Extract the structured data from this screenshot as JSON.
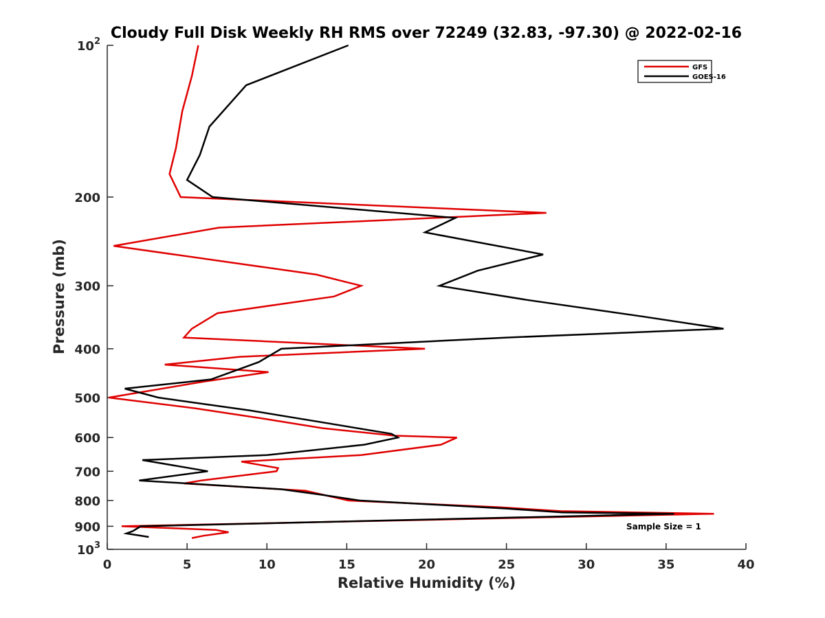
{
  "chart_data": {
    "type": "line",
    "title": "Cloudy Full Disk Weekly RH RMS over 72249 (32.83, -97.30) @ 2022-02-16",
    "xlabel": "Relative Humidity (%)",
    "ylabel": "Pressure (mb)",
    "xlim": [
      0,
      40
    ],
    "ylim": [
      100,
      1000
    ],
    "y_scale": "log",
    "y_reversed": true,
    "x_ticks": [
      0,
      5,
      10,
      15,
      20,
      25,
      30,
      35,
      40
    ],
    "x_tick_labels": [
      "0",
      "5",
      "10",
      "15",
      "20",
      "25",
      "30",
      "35",
      "40"
    ],
    "y_ticks": [
      100,
      200,
      300,
      400,
      500,
      600,
      700,
      800,
      900,
      1000
    ],
    "y_tick_labels": [
      {
        "base": "10",
        "exp": "2"
      },
      {
        "base": "200",
        "exp": ""
      },
      {
        "base": "300",
        "exp": ""
      },
      {
        "base": "400",
        "exp": ""
      },
      {
        "base": "500",
        "exp": ""
      },
      {
        "base": "600",
        "exp": ""
      },
      {
        "base": "700",
        "exp": ""
      },
      {
        "base": "800",
        "exp": ""
      },
      {
        "base": "900",
        "exp": ""
      },
      {
        "base": "10",
        "exp": "3"
      }
    ],
    "grid": false,
    "legend_position": "top-right",
    "annotation": "Sample Size = 1",
    "series": [
      {
        "name": "GFS",
        "color": "#e00000",
        "points": [
          [
            5.7,
            100
          ],
          [
            5.3,
            115
          ],
          [
            4.7,
            135
          ],
          [
            4.3,
            160
          ],
          [
            3.9,
            180
          ],
          [
            4.6,
            200
          ],
          [
            27.5,
            215
          ],
          [
            7.0,
            230
          ],
          [
            0.4,
            250
          ],
          [
            13.1,
            285
          ],
          [
            15.9,
            300
          ],
          [
            14.2,
            315
          ],
          [
            6.9,
            340
          ],
          [
            5.3,
            365
          ],
          [
            4.8,
            380
          ],
          [
            19.9,
            400
          ],
          [
            8.3,
            415
          ],
          [
            3.6,
            430
          ],
          [
            10.1,
            445
          ],
          [
            6.0,
            465
          ],
          [
            0.1,
            500
          ],
          [
            5.5,
            525
          ],
          [
            9.7,
            550
          ],
          [
            13.5,
            575
          ],
          [
            18.0,
            595
          ],
          [
            21.9,
            600
          ],
          [
            20.9,
            620
          ],
          [
            15.9,
            650
          ],
          [
            8.4,
            670
          ],
          [
            10.7,
            690
          ],
          [
            10.6,
            700
          ],
          [
            5.9,
            730
          ],
          [
            4.8,
            740
          ],
          [
            12.4,
            765
          ],
          [
            15.1,
            800
          ],
          [
            24.6,
            825
          ],
          [
            28.4,
            840
          ],
          [
            38.0,
            850
          ],
          [
            0.9,
            900
          ],
          [
            6.8,
            915
          ],
          [
            7.6,
            925
          ],
          [
            6.0,
            940
          ],
          [
            5.3,
            950
          ]
        ]
      },
      {
        "name": "GOES-16",
        "color": "#000000",
        "points": [
          [
            15.1,
            100
          ],
          [
            8.7,
            120
          ],
          [
            6.4,
            145
          ],
          [
            5.8,
            165
          ],
          [
            5.0,
            185
          ],
          [
            6.6,
            200
          ],
          [
            21.8,
            220
          ],
          [
            19.9,
            235
          ],
          [
            27.3,
            260
          ],
          [
            23.2,
            280
          ],
          [
            20.8,
            300
          ],
          [
            26.3,
            320
          ],
          [
            33.5,
            345
          ],
          [
            38.6,
            365
          ],
          [
            25.0,
            380
          ],
          [
            10.9,
            400
          ],
          [
            9.5,
            425
          ],
          [
            6.5,
            460
          ],
          [
            1.1,
            480
          ],
          [
            3.2,
            500
          ],
          [
            8.9,
            530
          ],
          [
            13.5,
            560
          ],
          [
            17.8,
            590
          ],
          [
            18.2,
            600
          ],
          [
            16.1,
            620
          ],
          [
            10.0,
            650
          ],
          [
            2.2,
            665
          ],
          [
            6.3,
            700
          ],
          [
            2.0,
            730
          ],
          [
            10.9,
            760
          ],
          [
            13.5,
            780
          ],
          [
            15.8,
            800
          ],
          [
            25.0,
            830
          ],
          [
            28.5,
            845
          ],
          [
            35.5,
            850
          ],
          [
            2.1,
            900
          ],
          [
            1.6,
            920
          ],
          [
            1.2,
            930
          ],
          [
            2.6,
            945
          ]
        ]
      }
    ]
  }
}
